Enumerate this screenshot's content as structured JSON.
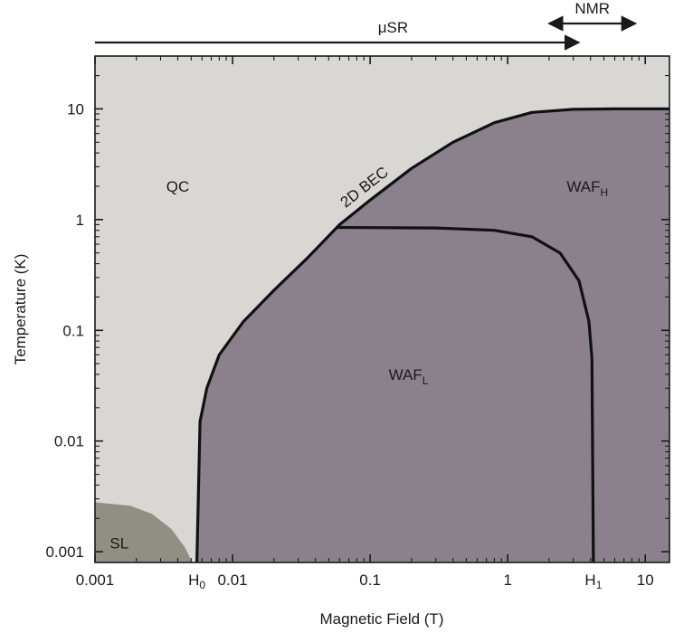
{
  "chart_data": {
    "type": "phase-diagram",
    "xlabel": "Magnetic Field (T)",
    "ylabel": "Temperature (K)",
    "x_scale": "log",
    "y_scale": "log",
    "xlim": [
      0.001,
      15
    ],
    "ylim": [
      0.0008,
      30
    ],
    "x_ticks": [
      {
        "value": 0.001,
        "label": "0.001"
      },
      {
        "value": 0.01,
        "label": "0.01"
      },
      {
        "value": 0.1,
        "label": "0.1"
      },
      {
        "value": 1,
        "label": "1"
      },
      {
        "value": 10,
        "label": "10"
      }
    ],
    "y_ticks": [
      {
        "value": 0.001,
        "label": "0.001"
      },
      {
        "value": 0.01,
        "label": "0.01"
      },
      {
        "value": 0.1,
        "label": "0.1"
      },
      {
        "value": 1,
        "label": "1"
      },
      {
        "value": 10,
        "label": "10"
      }
    ],
    "special_x_ticks": [
      {
        "value": 0.0055,
        "label": "H",
        "subscript": "0"
      },
      {
        "value": 4.2,
        "label": "H",
        "subscript": "1"
      }
    ],
    "regions": [
      {
        "id": "qc",
        "label": "QC",
        "subscript": "",
        "x": 0.004,
        "y": 2.0,
        "color": "#d8d7d4"
      },
      {
        "id": "waf-h",
        "label": "WAF",
        "subscript": "H",
        "x": 3.8,
        "y": 2.0,
        "color": "#8a818c"
      },
      {
        "id": "waf-l",
        "label": "WAF",
        "subscript": "L",
        "x": 0.19,
        "y": 0.04,
        "color": "#8a818c"
      },
      {
        "id": "sl",
        "label": "SL",
        "subscript": "",
        "x": 0.0015,
        "y": 0.0012,
        "color": "#8f9083"
      }
    ],
    "boundaries": [
      {
        "id": "upper-boundary",
        "label": "2D BEC",
        "points": [
          [
            0.0055,
            0.0008
          ],
          [
            0.0058,
            0.015
          ],
          [
            0.0065,
            0.03
          ],
          [
            0.008,
            0.06
          ],
          [
            0.012,
            0.12
          ],
          [
            0.02,
            0.23
          ],
          [
            0.035,
            0.45
          ],
          [
            0.06,
            0.9
          ],
          [
            0.1,
            1.5
          ],
          [
            0.2,
            2.9
          ],
          [
            0.4,
            5.0
          ],
          [
            0.8,
            7.5
          ],
          [
            1.5,
            9.3
          ],
          [
            3,
            9.9
          ],
          [
            6,
            10
          ],
          [
            15,
            10
          ]
        ]
      },
      {
        "id": "inner-boundary",
        "label": "",
        "points": [
          [
            0.058,
            0.85
          ],
          [
            0.3,
            0.84
          ],
          [
            0.8,
            0.8
          ],
          [
            1.5,
            0.7
          ],
          [
            2.4,
            0.5
          ],
          [
            3.3,
            0.28
          ],
          [
            3.9,
            0.12
          ],
          [
            4.1,
            0.055
          ],
          [
            4.2,
            0.0008
          ]
        ]
      },
      {
        "id": "sl-boundary",
        "label": "",
        "points": [
          [
            0.001,
            0.0028
          ],
          [
            0.0018,
            0.0026
          ],
          [
            0.0026,
            0.0022
          ],
          [
            0.0036,
            0.0016
          ],
          [
            0.0045,
            0.0011
          ],
          [
            0.0051,
            0.0008
          ]
        ]
      }
    ],
    "technique_ranges": [
      {
        "label": "μSR",
        "x_from": 0.001,
        "x_to": 3.0,
        "arrows": "right"
      },
      {
        "label": "NMR",
        "x_from": 2.0,
        "x_to": 8.5,
        "arrows": "both"
      }
    ],
    "grid": false,
    "legend": "none"
  }
}
